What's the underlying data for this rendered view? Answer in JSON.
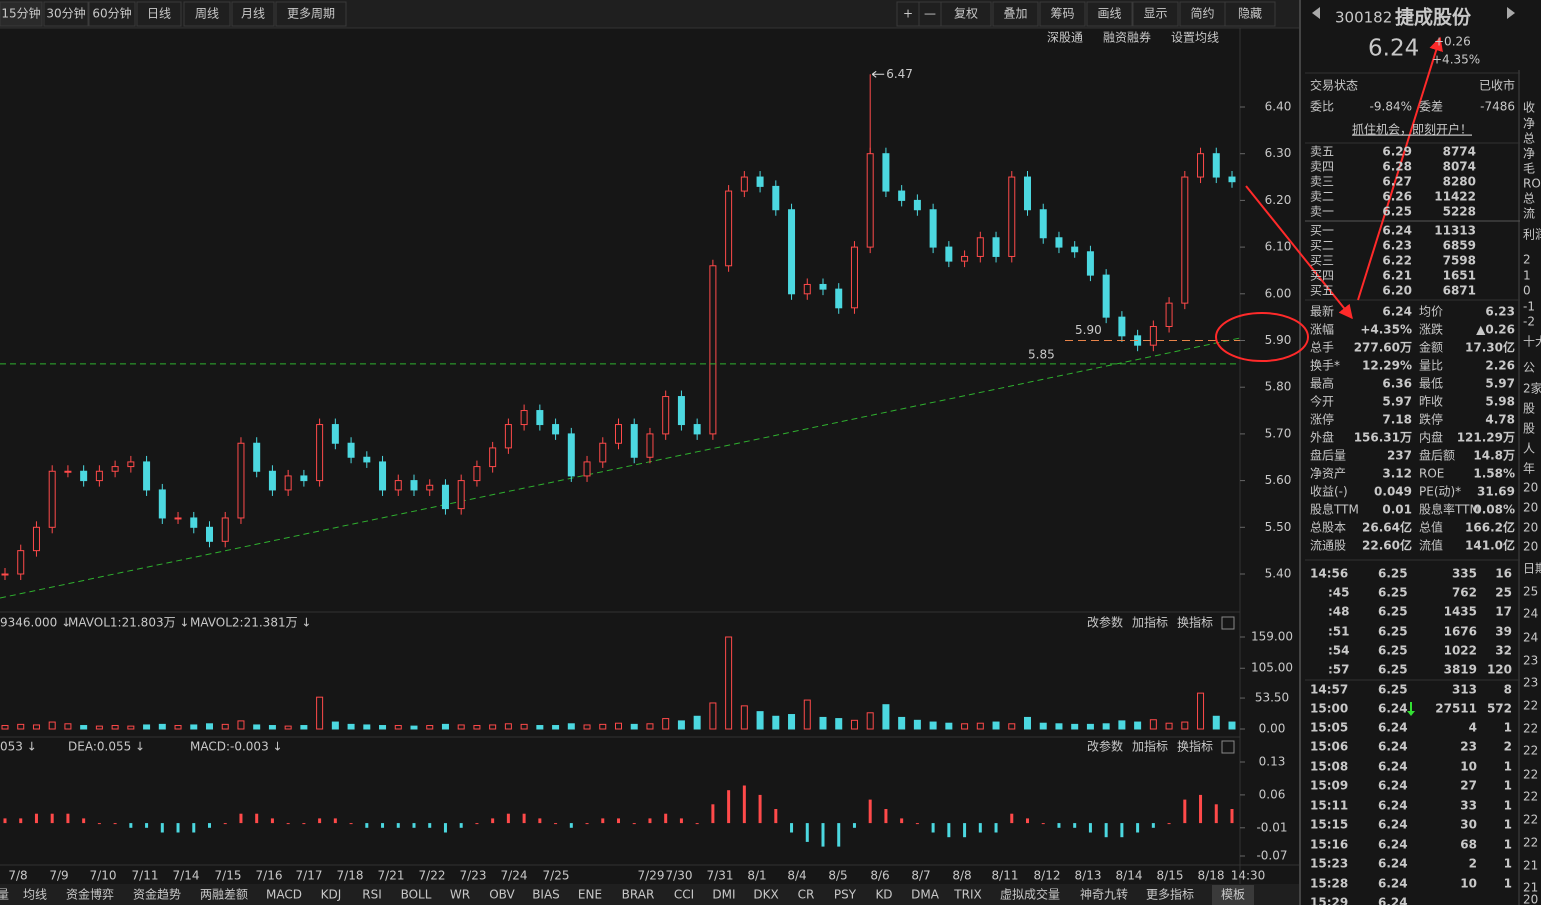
{
  "toolbar": {
    "periods": [
      "15分钟",
      "30分钟",
      "60分钟",
      "日线",
      "周线",
      "月线",
      "更多周期"
    ],
    "tools": [
      "+",
      "—",
      "复权",
      "叠加",
      "筹码",
      "画线",
      "显示",
      "简约",
      "隐藏"
    ]
  },
  "subtoolbar": [
    "深股通",
    "融资融券",
    "设置均线"
  ],
  "price_chart": {
    "yticks": [
      {
        "value": 6.4,
        "label": "6.40"
      },
      {
        "value": 6.3,
        "label": "6.30"
      },
      {
        "value": 6.2,
        "label": "6.20"
      },
      {
        "value": 6.1,
        "label": "6.10"
      },
      {
        "value": 6.0,
        "label": "6.00"
      },
      {
        "value": 5.9,
        "label": "5.90"
      },
      {
        "value": 5.8,
        "label": "5.80"
      },
      {
        "value": 5.7,
        "label": "5.70"
      },
      {
        "value": 5.6,
        "label": "5.60"
      },
      {
        "value": 5.5,
        "label": "5.50"
      },
      {
        "value": 5.4,
        "label": "5.40"
      }
    ],
    "closes": [
      5.4,
      5.45,
      5.5,
      5.62,
      5.62,
      5.6,
      5.62,
      5.63,
      5.64,
      5.58,
      5.52,
      5.52,
      5.5,
      5.47,
      5.52,
      5.68,
      5.62,
      5.58,
      5.61,
      5.6,
      5.72,
      5.68,
      5.65,
      5.64,
      5.58,
      5.6,
      5.58,
      5.59,
      5.54,
      5.6,
      5.63,
      5.67,
      5.72,
      5.75,
      5.72,
      5.7,
      5.61,
      5.64,
      5.68,
      5.72,
      5.65,
      5.7,
      5.78,
      5.72,
      5.7,
      6.06,
      6.22,
      6.25,
      6.23,
      6.18,
      6.0,
      6.02,
      6.01,
      5.97,
      6.1,
      6.3,
      6.22,
      6.2,
      6.18,
      6.1,
      6.07,
      6.08,
      6.12,
      6.08,
      6.25,
      6.18,
      6.12,
      6.1,
      6.09,
      6.04,
      5.95,
      5.91,
      5.89,
      5.93,
      5.98,
      6.25,
      6.3,
      6.25,
      6.24
    ],
    "high_label": "6.47",
    "line_labels": [
      "5.90",
      "5.85"
    ]
  },
  "volume_panel": {
    "legend": [
      "9346.000 ↓",
      "MAVOL1:21.803万 ↓",
      "MAVOL2:21.381万 ↓"
    ],
    "buttons": [
      "改参数",
      "加指标",
      "换指标"
    ],
    "yticks": [
      {
        "value": 159,
        "label": "159.00"
      },
      {
        "value": 105,
        "label": "105.00"
      },
      {
        "value": 53.5,
        "label": "53.50"
      },
      {
        "value": 0,
        "label": "0.00"
      }
    ],
    "values": [
      6,
      8,
      7,
      12,
      9,
      6,
      5,
      6,
      5,
      7,
      8,
      6,
      7,
      9,
      8,
      14,
      7,
      6,
      5,
      6,
      55,
      12,
      8,
      7,
      6,
      6,
      5,
      6,
      8,
      7,
      6,
      7,
      9,
      8,
      6,
      6,
      9,
      7,
      8,
      10,
      8,
      9,
      18,
      14,
      22,
      45,
      159,
      40,
      30,
      22,
      25,
      50,
      20,
      18,
      15,
      28,
      42,
      20,
      15,
      12,
      10,
      9,
      10,
      12,
      9,
      20,
      10,
      9,
      8,
      8,
      9,
      14,
      12,
      16,
      10,
      12,
      62,
      22,
      12
    ]
  },
  "macd_panel": {
    "legend": [
      "053 ↓",
      "DEA:0.055 ↓",
      "MACD:-0.003 ↓"
    ],
    "buttons": [
      "改参数",
      "加指标",
      "换指标"
    ],
    "yticks": [
      {
        "value": 0.13,
        "label": "0.13"
      },
      {
        "value": 0.06,
        "label": "0.06"
      },
      {
        "value": -0.01,
        "label": "-0.01"
      },
      {
        "value": -0.07,
        "label": "-0.07"
      }
    ],
    "values": [
      0.01,
      0.01,
      0.02,
      0.02,
      0.02,
      0.01,
      0.0,
      0.0,
      -0.01,
      -0.01,
      -0.02,
      -0.02,
      -0.02,
      -0.01,
      0.0,
      0.02,
      0.02,
      0.01,
      0.0,
      0.0,
      0.01,
      0.01,
      0.0,
      -0.01,
      -0.01,
      -0.01,
      -0.01,
      -0.01,
      -0.02,
      -0.01,
      0.0,
      0.01,
      0.02,
      0.02,
      0.01,
      0.0,
      -0.01,
      0.0,
      0.01,
      0.01,
      0.0,
      0.01,
      0.02,
      0.01,
      0.0,
      0.04,
      0.07,
      0.08,
      0.06,
      0.03,
      -0.02,
      -0.04,
      -0.05,
      -0.05,
      -0.01,
      0.05,
      0.03,
      0.01,
      0.0,
      -0.02,
      -0.03,
      -0.03,
      -0.02,
      -0.02,
      0.02,
      0.01,
      0.0,
      -0.01,
      -0.01,
      -0.02,
      -0.03,
      -0.03,
      -0.02,
      -0.01,
      0.0,
      0.05,
      0.06,
      0.04,
      0.03
    ]
  },
  "dates": [
    "7/8",
    "7/9",
    "7/10",
    "7/11",
    "7/14",
    "7/15",
    "7/16",
    "7/17",
    "7/18",
    "7/21",
    "7/22",
    "7/23",
    "7/24",
    "7/25",
    "7/29",
    "7/30",
    "7/31",
    "8/1",
    "8/4",
    "8/5",
    "8/6",
    "8/7",
    "8/8",
    "8/11",
    "8/12",
    "8/13",
    "8/14",
    "8/15",
    "8/18",
    "14:30"
  ],
  "tabs": [
    "量",
    "均线",
    "资金博弈",
    "资金趋势",
    "两融差额",
    "MACD",
    "KDJ",
    "RSI",
    "BOLL",
    "WR",
    "OBV",
    "BIAS",
    "ENE",
    "BRAR",
    "CCI",
    "DMI",
    "DKX",
    "CR",
    "PSY",
    "KD",
    "DMA",
    "TRIX",
    "虚拟成交量",
    "神奇九转",
    "更多指标",
    "模板"
  ],
  "quote": {
    "code": "300182",
    "name": "捷成股份",
    "price": "6.24",
    "change": "+0.26",
    "change_pct": "+4.35%",
    "status": [
      "交易状态",
      "已收市"
    ],
    "ratio": [
      "委比",
      "-9.84%",
      "委差",
      "-7486"
    ],
    "promo": "抓住机会，即刻开户！",
    "asks": [
      [
        "卖五",
        "6.29",
        "8774"
      ],
      [
        "卖四",
        "6.28",
        "8074"
      ],
      [
        "卖三",
        "6.27",
        "8280"
      ],
      [
        "卖二",
        "6.26",
        "11422"
      ],
      [
        "卖一",
        "6.25",
        "5228"
      ]
    ],
    "bids": [
      [
        "买一",
        "6.24",
        "11313"
      ],
      [
        "买二",
        "6.23",
        "6859"
      ],
      [
        "买三",
        "6.22",
        "7598"
      ],
      [
        "买四",
        "6.21",
        "1651"
      ],
      [
        "买五",
        "6.20",
        "6871"
      ]
    ],
    "stats": [
      [
        "最新",
        "6.24",
        "均价",
        "6.23"
      ],
      [
        "涨幅",
        "+4.35%",
        "涨跌",
        "▲0.26"
      ],
      [
        "总手",
        "277.60万",
        "金额",
        "17.30亿"
      ],
      [
        "换手*",
        "12.29%",
        "量比",
        "2.26"
      ],
      [
        "最高",
        "6.36",
        "最低",
        "5.97"
      ],
      [
        "今开",
        "5.97",
        "昨收",
        "5.98"
      ],
      [
        "涨停",
        "7.18",
        "跌停",
        "4.78"
      ],
      [
        "外盘",
        "156.31万",
        "内盘",
        "121.29万"
      ],
      [
        "盘后量",
        "237",
        "盘后额",
        "14.8万"
      ],
      [
        "净资产",
        "3.12",
        "ROE",
        "1.58%"
      ],
      [
        "收益(-)",
        "0.049",
        "PE(动)*",
        "31.69"
      ],
      [
        "股息TTM",
        "0.01",
        "股息率TTM",
        "0.08%"
      ],
      [
        "总股本",
        "26.64亿",
        "总值",
        "166.2亿"
      ],
      [
        "流通股",
        "22.60亿",
        "流值",
        "141.0亿"
      ]
    ]
  },
  "trades": [
    [
      "14:56",
      "6.25",
      "335",
      "16"
    ],
    [
      ":45",
      "6.25",
      "762",
      "25"
    ],
    [
      ":48",
      "6.25",
      "1435",
      "17"
    ],
    [
      ":51",
      "6.25",
      "1676",
      "39"
    ],
    [
      ":54",
      "6.25",
      "1022",
      "32"
    ],
    [
      ":57",
      "6.25",
      "3819",
      "120"
    ],
    [
      "14:57",
      "6.25",
      "313",
      "8"
    ],
    [
      "15:00",
      "6.24",
      "27511",
      "572"
    ],
    [
      "15:05",
      "6.24",
      "4",
      "1"
    ],
    [
      "15:06",
      "6.24",
      "23",
      "2"
    ],
    [
      "15:08",
      "6.24",
      "10",
      "1"
    ],
    [
      "15:09",
      "6.24",
      "27",
      "1"
    ],
    [
      "15:11",
      "6.24",
      "33",
      "1"
    ],
    [
      "15:15",
      "6.24",
      "30",
      "1"
    ],
    [
      "15:16",
      "6.24",
      "68",
      "1"
    ],
    [
      "15:23",
      "6.24",
      "2",
      "1"
    ],
    [
      "15:28",
      "6.24",
      "10",
      "1"
    ],
    [
      "15:29",
      "6.24",
      "",
      ""
    ]
  ],
  "side_strip": [
    "收",
    "净",
    "总",
    "净",
    "毛",
    "RO",
    "总",
    "流",
    "利润",
    "2",
    "1",
    "0",
    "-1",
    "-2",
    "十大",
    "公",
    "2家",
    "股",
    "股",
    "人",
    "年",
    "20",
    "20",
    "20",
    "20",
    "日期",
    "25",
    "24",
    "24",
    "23",
    "23",
    "22",
    "22",
    "22",
    "22",
    "22",
    "22",
    "22",
    "21",
    "21",
    "20"
  ]
}
